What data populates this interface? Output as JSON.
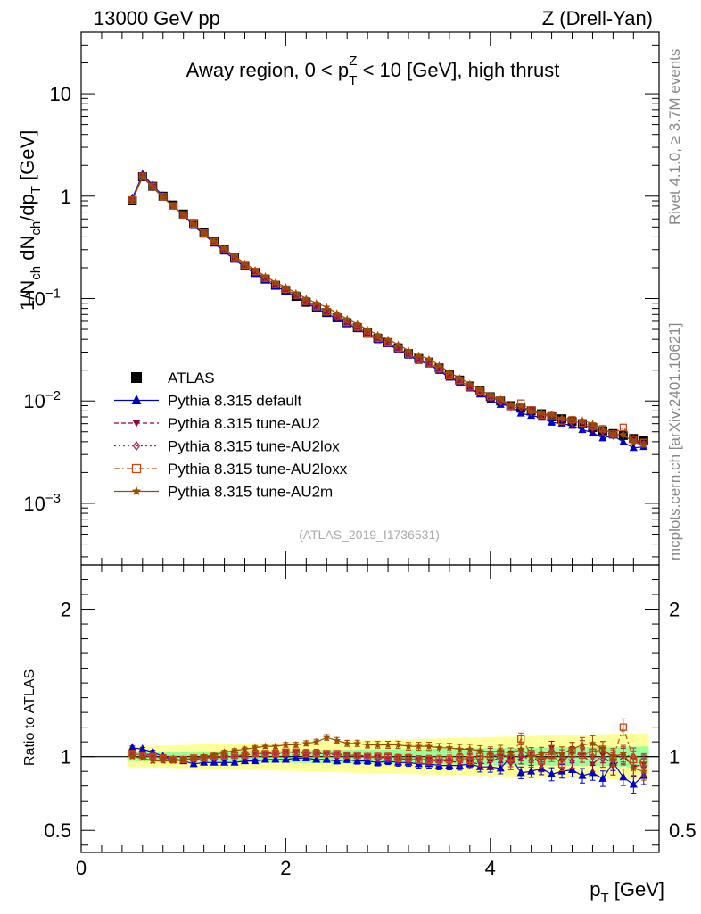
{
  "header": {
    "left": "13000 GeV pp",
    "right": "Z (Drell-Yan)"
  },
  "side": {
    "rivet": "Rivet 4.1.0, ≥ 3.7M events",
    "mcplots": "mcplots.cern.ch [arXiv:2401.10621]"
  },
  "colors": {
    "data": "#000000",
    "default": "#0000cc",
    "au2": "#990033",
    "au2lox": "#b0224d",
    "au2loxx": "#c04a1a",
    "au2m": "#994d00",
    "band_inner": "#99ff99",
    "band_outer": "#ffff99"
  },
  "chart_data": {
    "type": "line",
    "title": "Away region, 0 < p_T^Z < 10 [GeV], high thrust",
    "title_parts": {
      "prefix": "Away region, 0 < p",
      "sub": "T",
      "sup": "Z",
      "suffix": " < 10 [GeV], high thrust"
    },
    "analysis_tag": "(ATLAS_2019_I1736531)",
    "xlabel": "p_T [GeV]",
    "xlabel_parts": {
      "main": "p",
      "sub": "T",
      "unit": " [GeV]"
    },
    "ylabel": "1/N_ch dN_ch/dp_T [GeV]",
    "ratio_ylabel": "Ratio to ATLAS",
    "xlim": [
      0,
      5.65
    ],
    "ylim": [
      0.00025,
      40
    ],
    "ratio_ylim": [
      0.35,
      2.3
    ],
    "x_ticks": [
      0,
      2,
      4
    ],
    "y_ticks": [
      "10^-3",
      "10^-2",
      "10^-1",
      "1",
      "10"
    ],
    "ratio_ticks": [
      0.5,
      1,
      2
    ],
    "legend": [
      {
        "key": "data",
        "label": "ATLAS"
      },
      {
        "key": "default",
        "label": "Pythia 8.315 default"
      },
      {
        "key": "au2",
        "label": "Pythia 8.315 tune-AU2"
      },
      {
        "key": "au2lox",
        "label": "Pythia 8.315 tune-AU2lox"
      },
      {
        "key": "au2loxx",
        "label": "Pythia 8.315 tune-AU2loxx"
      },
      {
        "key": "au2m",
        "label": "Pythia 8.315 tune-AU2m"
      }
    ],
    "x": [
      0.5,
      0.6,
      0.7,
      0.8,
      0.9,
      1.0,
      1.1,
      1.2,
      1.3,
      1.4,
      1.5,
      1.6,
      1.7,
      1.8,
      1.9,
      2.0,
      2.1,
      2.2,
      2.3,
      2.4,
      2.5,
      2.6,
      2.7,
      2.8,
      2.9,
      3.0,
      3.1,
      3.2,
      3.3,
      3.4,
      3.5,
      3.6,
      3.7,
      3.8,
      3.9,
      4.0,
      4.1,
      4.2,
      4.3,
      4.4,
      4.5,
      4.6,
      4.7,
      4.8,
      4.9,
      5.0,
      5.1,
      5.2,
      5.3,
      5.4,
      5.5
    ],
    "data": [
      0.9,
      1.55,
      1.25,
      1.0,
      0.82,
      0.67,
      0.54,
      0.44,
      0.36,
      0.3,
      0.25,
      0.21,
      0.18,
      0.155,
      0.135,
      0.12,
      0.105,
      0.092,
      0.082,
      0.073,
      0.065,
      0.058,
      0.052,
      0.046,
      0.041,
      0.037,
      0.033,
      0.029,
      0.026,
      0.024,
      0.021,
      0.018,
      0.016,
      0.014,
      0.0125,
      0.011,
      0.01,
      0.009,
      0.0085,
      0.008,
      0.0075,
      0.007,
      0.0067,
      0.0063,
      0.006,
      0.0055,
      0.0051,
      0.0048,
      0.0046,
      0.0043,
      0.0041
    ],
    "band_inner": 0.03,
    "band_outer": 0.07,
    "series": [
      {
        "key": "default",
        "name": "Pythia 8.315 default",
        "ratio": [
          1.06,
          1.05,
          1.03,
          1.0,
          0.98,
          0.97,
          0.95,
          0.96,
          0.96,
          0.96,
          0.96,
          0.97,
          0.97,
          0.98,
          0.98,
          0.98,
          0.99,
          0.99,
          0.98,
          0.98,
          0.97,
          0.98,
          0.97,
          0.97,
          0.96,
          0.97,
          0.96,
          0.96,
          0.95,
          0.95,
          0.94,
          0.94,
          0.94,
          0.95,
          0.93,
          0.93,
          0.92,
          1.0,
          0.89,
          0.9,
          0.92,
          0.88,
          0.9,
          0.91,
          0.87,
          0.89,
          0.85,
          0.96,
          0.86,
          0.81,
          0.87
        ]
      },
      {
        "key": "au2",
        "name": "Pythia 8.315 tune-AU2",
        "ratio": [
          1.03,
          1.02,
          1.01,
          0.99,
          0.98,
          0.98,
          0.98,
          0.99,
          0.99,
          1.0,
          1.0,
          1.01,
          1.02,
          1.02,
          1.03,
          1.03,
          1.03,
          1.03,
          1.03,
          1.02,
          1.02,
          1.01,
          1.01,
          1.0,
          1.0,
          0.99,
          0.99,
          0.98,
          0.98,
          0.98,
          0.97,
          0.97,
          0.96,
          0.96,
          0.95,
          0.96,
          1.0,
          0.95,
          0.99,
          1.02,
          0.94,
          1.06,
          0.97,
          1.02,
          1.01,
          0.95,
          1.01,
          0.93,
          1.0,
          0.93,
          0.95
        ]
      },
      {
        "key": "au2lox",
        "name": "Pythia 8.315 tune-AU2lox",
        "ratio": [
          1.02,
          1.01,
          1.0,
          0.99,
          0.98,
          0.98,
          0.98,
          0.99,
          0.99,
          1.0,
          1.0,
          1.01,
          1.02,
          1.02,
          1.02,
          1.02,
          1.03,
          1.02,
          1.02,
          1.02,
          1.01,
          1.01,
          1.0,
          1.0,
          0.99,
          0.99,
          0.98,
          0.98,
          0.98,
          0.97,
          0.97,
          0.98,
          0.98,
          0.99,
          0.97,
          1.02,
          0.98,
          0.97,
          1.01,
          0.97,
          0.99,
          1.04,
          1.0,
          0.97,
          1.06,
          1.0,
          0.98,
          0.97,
          1.01,
          1.0,
          0.93
        ]
      },
      {
        "key": "au2loxx",
        "name": "Pythia 8.315 tune-AU2loxx",
        "ratio": [
          1.02,
          1.01,
          1.0,
          0.99,
          0.98,
          0.98,
          0.99,
          0.99,
          1.0,
          1.0,
          1.01,
          1.01,
          1.02,
          1.02,
          1.02,
          1.03,
          1.03,
          1.02,
          1.02,
          1.02,
          1.02,
          1.01,
          1.01,
          1.0,
          1.0,
          1.0,
          0.99,
          0.99,
          0.98,
          0.98,
          0.98,
          0.98,
          0.99,
          0.98,
          1.0,
          1.0,
          1.02,
          0.99,
          1.12,
          1.02,
          0.97,
          1.01,
          0.95,
          1.04,
          1.01,
          1.03,
          1.05,
          0.99,
          1.2,
          0.98,
          0.96
        ]
      },
      {
        "key": "au2m",
        "name": "Pythia 8.315 tune-AU2m",
        "ratio": [
          1.0,
          0.99,
          0.97,
          0.97,
          0.97,
          0.98,
          0.99,
          1.0,
          1.01,
          1.03,
          1.04,
          1.05,
          1.06,
          1.07,
          1.07,
          1.08,
          1.08,
          1.09,
          1.1,
          1.13,
          1.11,
          1.09,
          1.09,
          1.08,
          1.08,
          1.08,
          1.08,
          1.07,
          1.07,
          1.07,
          1.06,
          1.06,
          1.05,
          1.05,
          1.04,
          1.03,
          1.04,
          1.02,
          1.05,
          1.0,
          1.02,
          1.03,
          1.02,
          1.05,
          1.08,
          1.09,
          1.05,
          1.0,
          1.02,
          0.92,
          0.9
        ]
      }
    ]
  }
}
